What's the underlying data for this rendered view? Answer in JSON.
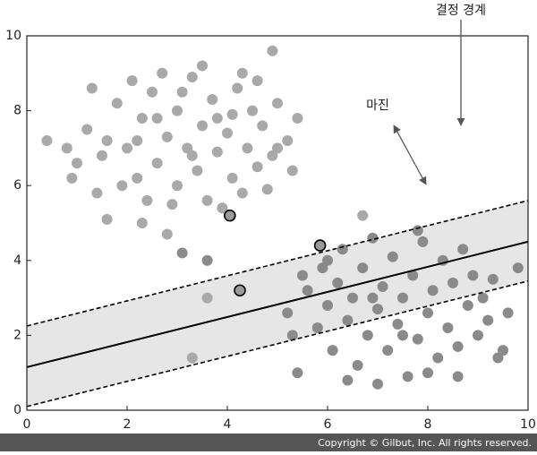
{
  "chart_data": {
    "type": "scatter",
    "xlim": [
      0,
      10
    ],
    "ylim": [
      0,
      10
    ],
    "xticks": [
      0,
      2,
      4,
      6,
      8,
      10
    ],
    "yticks": [
      0,
      2,
      4,
      6,
      8,
      10
    ],
    "series": [
      {
        "color": "#a9a9a9",
        "x": [
          1.2,
          1.5,
          1.8,
          2.0,
          2.2,
          2.3,
          2.5,
          2.6,
          2.8,
          3.0,
          3.0,
          3.2,
          3.3,
          3.4,
          3.5,
          3.6,
          3.7,
          3.8,
          4.0,
          4.1,
          4.2,
          4.3,
          4.4,
          4.5,
          4.6,
          4.7,
          4.9,
          5.0,
          5.2,
          5.3,
          1.0,
          1.3,
          1.6,
          1.9,
          2.1,
          2.4,
          2.7,
          2.9,
          3.1,
          3.5,
          3.9,
          4.3,
          4.8,
          5.0,
          5.4,
          0.8,
          1.4,
          2.2,
          3.8,
          4.6,
          4.9,
          0.9,
          2.6,
          3.3,
          4.1,
          0.4,
          1.6,
          2.3,
          2.8,
          3.6,
          3.3,
          6.7
        ],
        "values": [
          7.5,
          6.8,
          8.2,
          7.0,
          6.2,
          7.8,
          8.5,
          6.6,
          7.3,
          6.0,
          8.0,
          7.0,
          8.9,
          6.4,
          7.6,
          5.6,
          8.3,
          6.9,
          7.4,
          6.2,
          8.6,
          5.8,
          7.0,
          8.0,
          6.5,
          7.6,
          6.8,
          8.2,
          7.2,
          6.4,
          6.6,
          8.6,
          7.2,
          6.0,
          8.8,
          5.6,
          9.0,
          5.5,
          8.5,
          9.2,
          5.4,
          9.0,
          5.9,
          7.0,
          7.8,
          7.0,
          5.8,
          7.2,
          7.8,
          8.8,
          9.6,
          6.2,
          7.8,
          6.8,
          7.9,
          7.2,
          5.1,
          5.0,
          4.7,
          3.0,
          1.4,
          5.2
        ]
      },
      {
        "color": "#8a8a8a",
        "x": [
          5.6,
          5.8,
          5.9,
          6.0,
          6.1,
          6.2,
          6.3,
          6.4,
          6.5,
          6.6,
          6.7,
          6.8,
          6.9,
          7.0,
          7.1,
          7.2,
          7.3,
          7.4,
          7.5,
          7.6,
          7.7,
          7.8,
          7.9,
          8.0,
          8.1,
          8.2,
          8.3,
          8.4,
          8.5,
          8.6,
          8.7,
          8.8,
          8.9,
          9.0,
          9.1,
          9.2,
          9.3,
          9.5,
          9.6,
          9.8,
          5.3,
          5.5,
          5.4,
          6.0,
          6.4,
          7.0,
          7.8,
          8.6,
          9.4,
          8.0,
          5.2,
          7.5,
          6.9,
          3.6,
          3.1
        ],
        "values": [
          3.2,
          2.2,
          3.8,
          2.8,
          1.6,
          3.4,
          4.3,
          2.4,
          3.0,
          1.2,
          3.8,
          2.0,
          4.6,
          2.7,
          3.3,
          1.6,
          4.1,
          2.3,
          3.0,
          0.9,
          3.6,
          1.9,
          4.5,
          2.6,
          3.2,
          1.4,
          4.0,
          2.2,
          3.4,
          1.7,
          4.3,
          2.8,
          3.6,
          2.0,
          3.0,
          2.4,
          3.5,
          1.6,
          2.6,
          3.8,
          2.0,
          3.6,
          1.0,
          4.0,
          0.8,
          0.7,
          4.8,
          0.9,
          1.4,
          1.0,
          2.6,
          2.0,
          3.0,
          4.0,
          4.2
        ]
      }
    ],
    "support_vectors": {
      "color": "#999999",
      "x": [
        4.05,
        5.85,
        4.25
      ],
      "values": [
        5.2,
        4.4,
        3.2
      ]
    },
    "lines": [
      {
        "style": "solid",
        "x": [
          0,
          10
        ],
        "values": [
          1.15,
          4.5
        ]
      },
      {
        "style": "dashed",
        "x": [
          0,
          10
        ],
        "values": [
          2.25,
          5.6
        ]
      },
      {
        "style": "dashed",
        "x": [
          0,
          10
        ],
        "values": [
          0.1,
          3.45
        ]
      }
    ],
    "margin_fill": "#e6e6e6",
    "annotations": [
      "결정 경계",
      "마진"
    ],
    "footer": "Copyright © Gilbut, Inc. All rights reserved."
  }
}
